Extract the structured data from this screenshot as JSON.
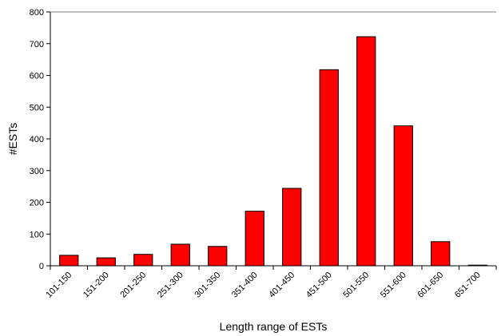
{
  "chart_data": {
    "type": "bar",
    "categories": [
      "101-150",
      "151-200",
      "201-250",
      "251-300",
      "301-350",
      "351-400",
      "401-450",
      "451-500",
      "501-550",
      "551-600",
      "601-650",
      "651-700"
    ],
    "values": [
      33,
      25,
      36,
      68,
      61,
      172,
      244,
      618,
      722,
      441,
      76,
      2
    ],
    "xlabel": "Length range of ESTs",
    "ylabel": "#ESTs",
    "ylim": [
      0,
      800
    ],
    "yticks": [
      0,
      100,
      200,
      300,
      400,
      500,
      600,
      700,
      800
    ],
    "bar_color": "#ff0000",
    "bar_edge_color": "#000000",
    "grid": false,
    "legend": false
  }
}
